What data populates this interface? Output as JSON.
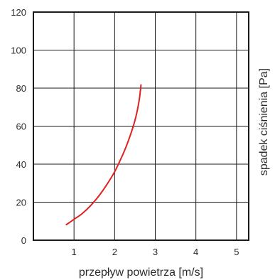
{
  "chart_data": {
    "type": "line",
    "title": "",
    "xlabel": "przepływ powietrza [m/s]",
    "ylabel": "spadek ciśnienia [Pa]",
    "xlim": [
      0,
      5.3
    ],
    "ylim": [
      0,
      120
    ],
    "x_ticks": [
      1,
      2,
      3,
      4,
      5
    ],
    "x_tick_labels": [
      "1",
      "2",
      "3",
      "4",
      "5"
    ],
    "y_ticks": [
      0,
      20,
      40,
      60,
      80,
      100,
      120
    ],
    "y_tick_labels": [
      "0",
      "20",
      "40",
      "60",
      "80",
      "100",
      "120"
    ],
    "grid": true,
    "series": [
      {
        "color": "#e02020",
        "x": [
          0.8,
          1.0,
          1.2,
          1.4,
          1.6,
          1.8,
          2.0,
          2.2,
          2.35,
          2.5,
          2.6,
          2.65
        ],
        "y": [
          8,
          11,
          14,
          18,
          23,
          29,
          36,
          45,
          53,
          63,
          73,
          82
        ]
      }
    ]
  }
}
